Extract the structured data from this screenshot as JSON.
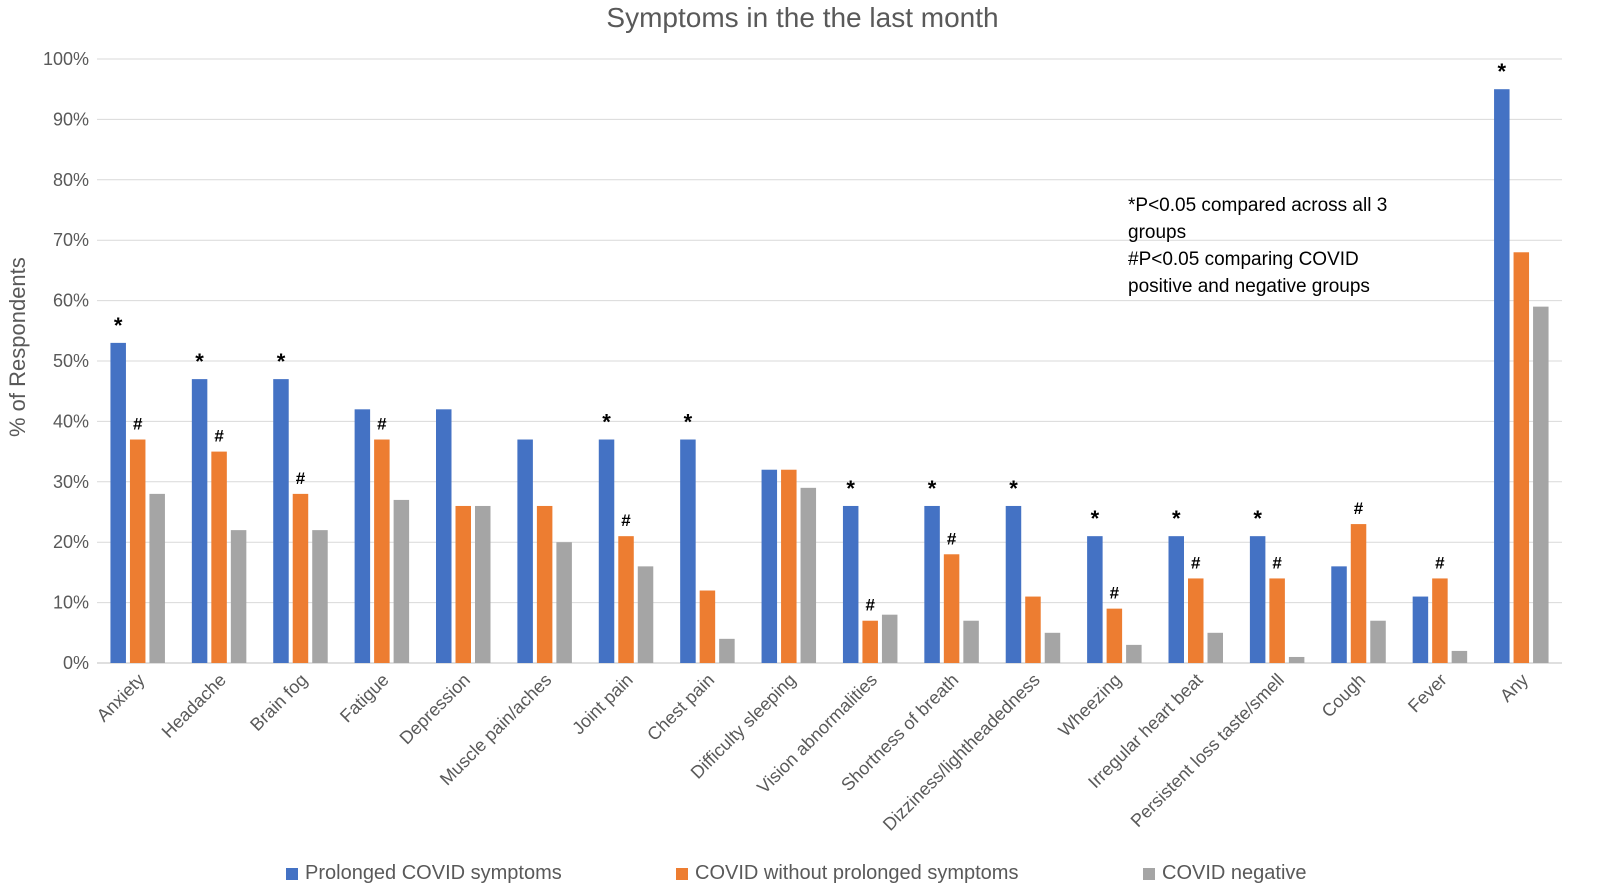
{
  "chart_data": {
    "type": "bar",
    "title": "Symptoms in the the last month",
    "xlabel": "",
    "ylabel": "% of Respondents",
    "ylim": [
      0,
      100
    ],
    "y_ticks": [
      "0%",
      "10%",
      "20%",
      "30%",
      "40%",
      "50%",
      "60%",
      "70%",
      "80%",
      "90%",
      "100%"
    ],
    "grid": true,
    "legend_position": "bottom",
    "categories": [
      "Anxiety",
      "Headache",
      "Brain fog",
      "Fatigue",
      "Depression",
      "Muscle pain/aches",
      "Joint pain",
      "Chest pain",
      "Difficulty sleeping",
      "Vision abnormalities",
      "Shortness of breath",
      "Dizziness/lightheadedness",
      "Wheezing",
      "Irregular heart beat",
      "Persistent loss taste/smell",
      "Cough",
      "Fever",
      "Any"
    ],
    "series": [
      {
        "name": "Prolonged COVID symptoms",
        "color": "#4472C4",
        "values": [
          53,
          47,
          47,
          42,
          42,
          37,
          37,
          37,
          32,
          26,
          26,
          26,
          21,
          21,
          21,
          16,
          11,
          95
        ]
      },
      {
        "name": "COVID without prolonged symptoms",
        "color": "#ED7D31",
        "values": [
          37,
          35,
          28,
          37,
          26,
          26,
          21,
          12,
          32,
          7,
          18,
          11,
          9,
          14,
          14,
          23,
          14,
          68
        ]
      },
      {
        "name": "COVID negative",
        "color": "#A5A5A5",
        "values": [
          28,
          22,
          22,
          27,
          26,
          20,
          16,
          4,
          29,
          8,
          7,
          5,
          3,
          5,
          1,
          7,
          2,
          59
        ]
      }
    ],
    "star_marker": "*",
    "hash_marker": "#",
    "star_categories": [
      "Anxiety",
      "Headache",
      "Brain fog",
      "Joint pain",
      "Chest pain",
      "Vision abnormalities",
      "Shortness of breath",
      "Dizziness/lightheadedness",
      "Wheezing",
      "Irregular heart beat",
      "Persistent loss taste/smell",
      "Any"
    ],
    "hash_categories": [
      "Anxiety",
      "Headache",
      "Brain fog",
      "Fatigue",
      "Joint pain",
      "Vision abnormalities",
      "Shortness of breath",
      "Wheezing",
      "Irregular heart beat",
      "Persistent loss taste/smell",
      "Cough",
      "Fever"
    ],
    "annotation_lines": [
      "*P<0.05 compared across all 3 groups",
      "#P<0.05 comparing COVID positive and negative groups"
    ]
  }
}
